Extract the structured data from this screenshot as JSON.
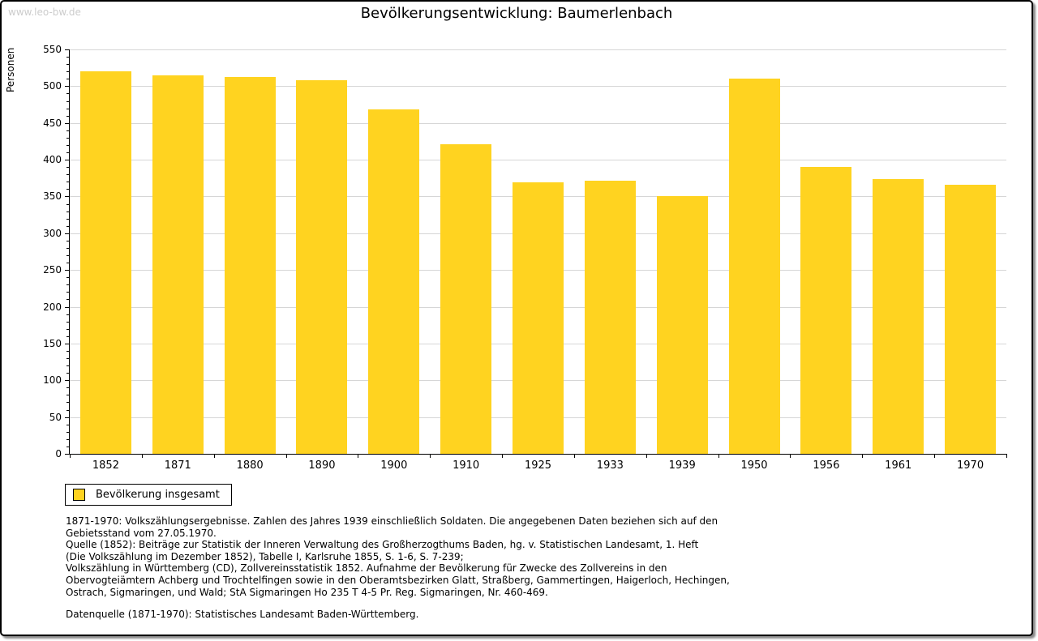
{
  "watermark": "www.leo-bw.de",
  "title": "Bevölkerungsentwicklung: Baumerlenbach",
  "chart_data": {
    "type": "bar",
    "title": "Bevölkerungsentwicklung: Baumerlenbach",
    "ylabel": "Personen",
    "xlabel": "",
    "categories": [
      "1852",
      "1871",
      "1880",
      "1890",
      "1900",
      "1910",
      "1925",
      "1933",
      "1939",
      "1950",
      "1956",
      "1961",
      "1970"
    ],
    "values": [
      520,
      515,
      513,
      508,
      468,
      421,
      369,
      371,
      350,
      510,
      390,
      374,
      366
    ],
    "series_name": "Bevölkerung insgesamt",
    "ylim": [
      0,
      550
    ],
    "ytick_interval": 50,
    "minor_tick_interval": 10,
    "grid": true,
    "bar_color": "#ffd320",
    "legend_position": "bottom-left"
  },
  "legend": {
    "label": "Bevölkerung insgesamt",
    "swatch_color": "#ffd320"
  },
  "footnotes": [
    "1871-1970: Volkszählungsergebnisse. Zahlen des Jahres 1939 einschließlich Soldaten. Die angegebenen Daten beziehen sich auf den",
    "Gebietsstand vom 27.05.1970.",
    "Quelle (1852): Beiträge zur Statistik der Inneren Verwaltung des Großherzogthums Baden, hg. v. Statistischen Landesamt, 1. Heft",
    "(Die Volkszählung im Dezember 1852), Tabelle I, Karlsruhe 1855, S. 1-6, S. 7-239;",
    "Volkszählung in Württemberg (CD), Zollvereinsstatistik 1852. Aufnahme der Bevölkerung für Zwecke des Zollvereins in den",
    "Obervogteiämtern Achberg und Trochtelfingen sowie in den Oberamtsbezirken Glatt, Straßberg, Gammertingen, Haigerloch, Hechingen,",
    "Ostrach, Sigmaringen, und Wald; StA Sigmaringen Ho 235 T 4-5 Pr. Reg. Sigmaringen, Nr. 460-469."
  ],
  "datasource": "Datenquelle (1871-1970): Statistisches Landesamt Baden-Württemberg.",
  "colors": {
    "bar": "#ffd320",
    "grid": "#d6d6d6",
    "axis": "#000000",
    "watermark": "#cccccc"
  }
}
